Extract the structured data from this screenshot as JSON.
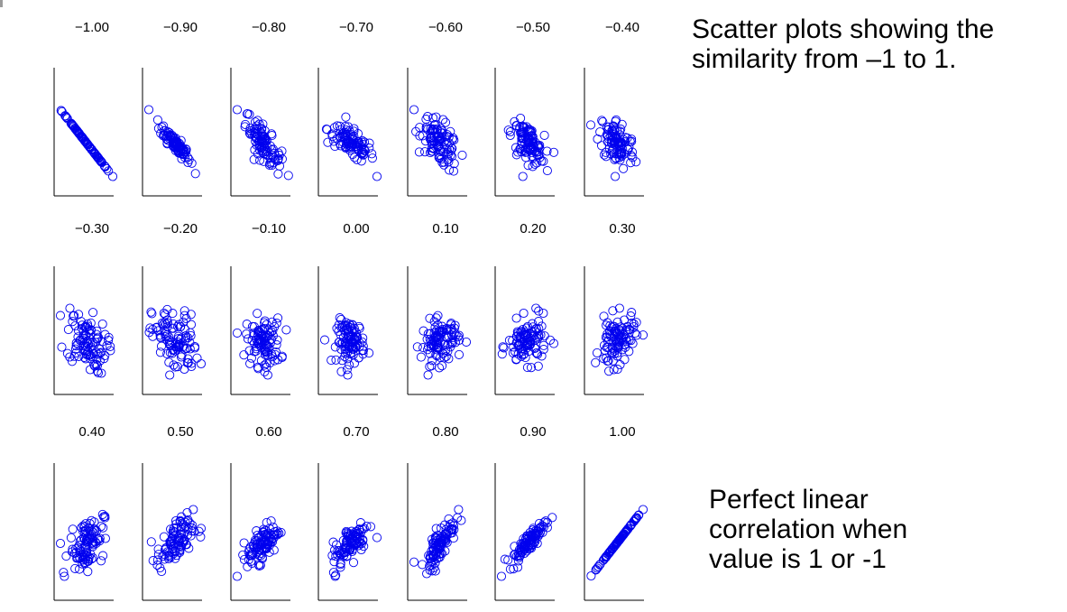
{
  "captions": {
    "top": [
      "Scatter plots showing the",
      "similarity from –1 to 1."
    ],
    "bottom": [
      "Perfect linear",
      "correlation when",
      "value is 1 or -1"
    ]
  },
  "colors": {
    "points": "#0000ee",
    "axes": "#000000",
    "text": "#000000"
  },
  "chart_data": {
    "type": "scatter",
    "layout": "small multiples, 3 rows by 7 columns",
    "marker": "open circle",
    "points_per_panel": 100,
    "axes_visible": "left and bottom lines only, no ticks",
    "grid": false,
    "legend": "none",
    "panels": [
      {
        "label": "−1.00",
        "r": -1.0
      },
      {
        "label": "−0.90",
        "r": -0.9
      },
      {
        "label": "−0.80",
        "r": -0.8
      },
      {
        "label": "−0.70",
        "r": -0.7
      },
      {
        "label": "−0.60",
        "r": -0.6
      },
      {
        "label": "−0.50",
        "r": -0.5
      },
      {
        "label": "−0.40",
        "r": -0.4
      },
      {
        "label": "−0.30",
        "r": -0.3
      },
      {
        "label": "−0.20",
        "r": -0.2
      },
      {
        "label": "−0.10",
        "r": -0.1
      },
      {
        "label": "0.00",
        "r": 0.0
      },
      {
        "label": "0.10",
        "r": 0.1
      },
      {
        "label": "0.20",
        "r": 0.2
      },
      {
        "label": "0.30",
        "r": 0.3
      },
      {
        "label": "0.40",
        "r": 0.4
      },
      {
        "label": "0.50",
        "r": 0.5
      },
      {
        "label": "0.60",
        "r": 0.6
      },
      {
        "label": "0.70",
        "r": 0.7
      },
      {
        "label": "0.80",
        "r": 0.8
      },
      {
        "label": "0.90",
        "r": 0.9
      },
      {
        "label": "1.00",
        "r": 1.0
      }
    ]
  }
}
